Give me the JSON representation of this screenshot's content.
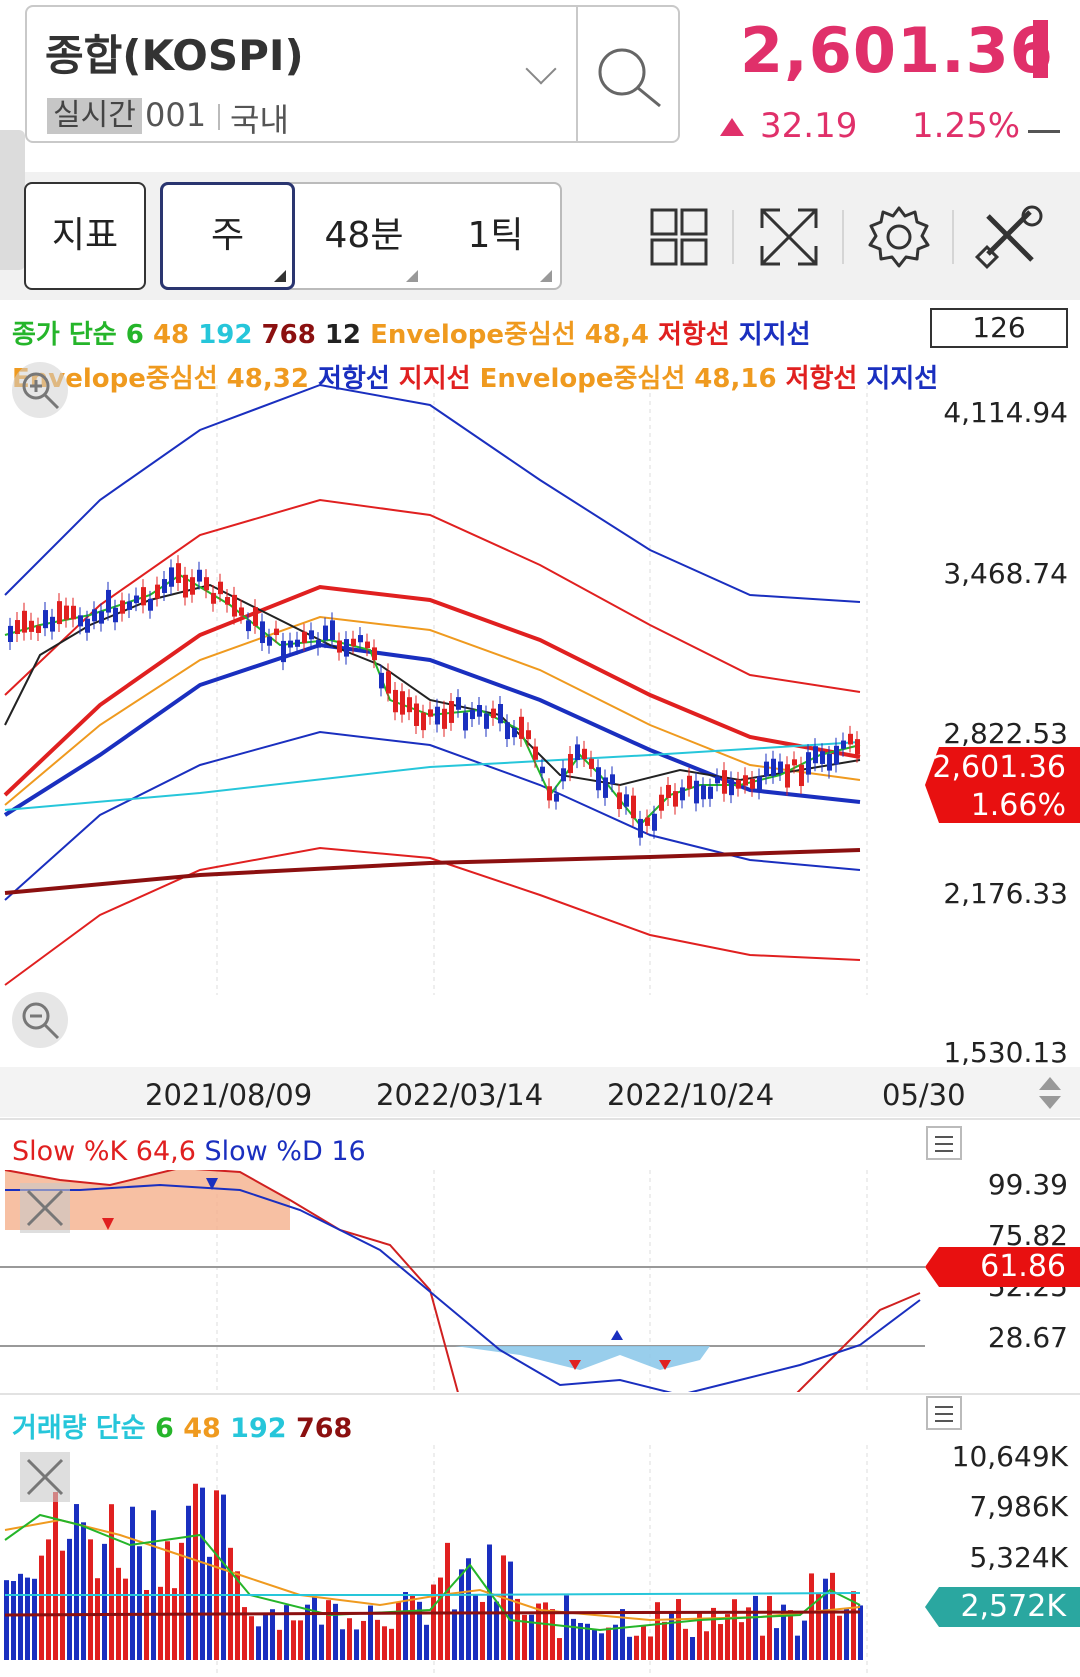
{
  "header": {
    "index_name": "종합(KOSPI)",
    "realtime_label": "실시간",
    "code": "001",
    "market": "국내",
    "price": "2,601.36",
    "change": "32.19",
    "change_pct": "1.25%"
  },
  "toolbar": {
    "indicator_label": "지표",
    "period_week": "주",
    "period_48min": "48분",
    "period_tick": "1틱",
    "icons": [
      "grid-layout-icon",
      "expand-icon",
      "gear-icon",
      "tools-icon"
    ]
  },
  "legend": {
    "line1": [
      {
        "text": "종가 단순 ",
        "color": "#25b52a"
      },
      {
        "text": "6 ",
        "color": "#25b52a"
      },
      {
        "text": "48 ",
        "color": "#ef9a1f"
      },
      {
        "text": "192 ",
        "color": "#26c6da"
      },
      {
        "text": "768 ",
        "color": "#8b1010"
      },
      {
        "text": "12 ",
        "color": "#222222"
      },
      {
        "text": "Envelope중심선 48,4 ",
        "color": "#ef9a1f"
      },
      {
        "text": "저항선 ",
        "color": "#e02020"
      },
      {
        "text": "지지선",
        "color": "#1a2fbf"
      }
    ],
    "line2": [
      {
        "text": "Envelope중심선 48,32 ",
        "color": "#ef9a1f"
      },
      {
        "text": "저항선 ",
        "color": "#1a2fbf"
      },
      {
        "text": "지지선 ",
        "color": "#e02020"
      },
      {
        "text": "Envelope중심선 48,16 ",
        "color": "#ef9a1f"
      },
      {
        "text": "저항선 ",
        "color": "#e02020"
      },
      {
        "text": "지지선",
        "color": "#1a2fbf"
      }
    ],
    "count": "126"
  },
  "price_axis": {
    "labels": [
      "4,114.94",
      "3,468.74",
      "2,822.53",
      "2,176.33",
      "1,530.13"
    ],
    "current_price": "2,601.36",
    "current_pct": "1.66%"
  },
  "dates": [
    "2021/08/09",
    "2022/03/14",
    "2022/10/24",
    "05/30"
  ],
  "stochastic": {
    "legend": [
      {
        "text": "Slow %K 64,6 ",
        "color": "#e02020"
      },
      {
        "text": "Slow %D 16",
        "color": "#1a2fbf"
      }
    ],
    "labels": [
      "99.39",
      "75.82",
      "52.25",
      "28.67"
    ],
    "current": "61.86"
  },
  "volume": {
    "legend": [
      {
        "text": "거래량 단순 ",
        "color": "#26c6da"
      },
      {
        "text": "6 ",
        "color": "#25b52a"
      },
      {
        "text": "48 ",
        "color": "#ef9a1f"
      },
      {
        "text": "192 ",
        "color": "#26c6da"
      },
      {
        "text": "768",
        "color": "#8b1010"
      }
    ],
    "labels": [
      "10,649K",
      "7,986K",
      "5,324K"
    ],
    "current": "2,572K"
  },
  "colors": {
    "up": "#e0306a",
    "candle_up": "#e02020",
    "candle_down": "#1a2fbf",
    "accent_pill": "#e81010",
    "volume_pill": "#2aa7a0"
  }
}
